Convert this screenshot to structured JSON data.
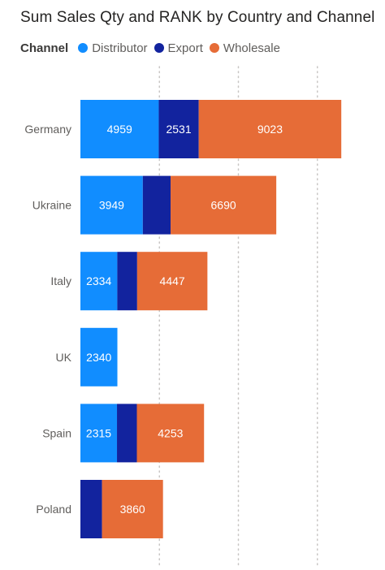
{
  "chart_data": {
    "type": "bar",
    "orientation": "horizontal",
    "stacked": true,
    "title": "Sum Sales Qty and RANK by Country and Channel",
    "legend_title": "Channel",
    "legend_position": "top-left",
    "grid": "vertical dotted",
    "categories": [
      "Germany",
      "Ukraine",
      "Italy",
      "UK",
      "Spain",
      "Poland"
    ],
    "series": [
      {
        "name": "Distributor",
        "color": "#118DFF",
        "values": [
          4959,
          3949,
          2334,
          2340,
          2315,
          null
        ],
        "labels": [
          "4959",
          "3949",
          "2334",
          "2340",
          "2315",
          ""
        ]
      },
      {
        "name": "Export",
        "color": "#12239E",
        "values": [
          2531,
          1759,
          1258,
          null,
          1258,
          1368
        ],
        "labels": [
          "2531",
          "",
          "",
          "",
          "",
          ""
        ]
      },
      {
        "name": "Wholesale",
        "color": "#E66C37",
        "values": [
          9023,
          6690,
          4447,
          null,
          4253,
          3860
        ],
        "labels": [
          "9023",
          "6690",
          "4447",
          "",
          "4253",
          "3860"
        ]
      }
    ],
    "xlim": [
      0,
      20000
    ]
  }
}
